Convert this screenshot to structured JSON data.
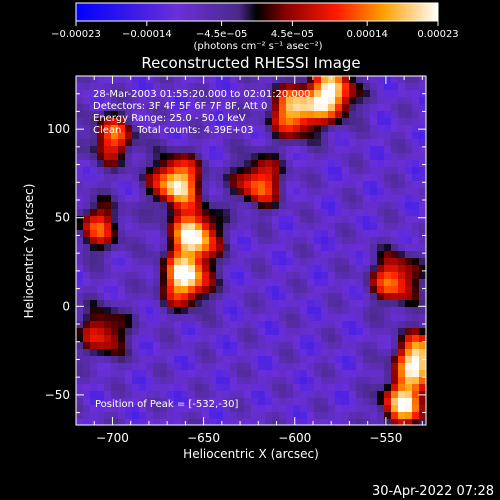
{
  "chart_data": {
    "type": "heatmap",
    "title": "Reconstructed RHESSI Image",
    "xlabel": "Heliocentric X (arcsec)",
    "ylabel": "Heliocentric Y (arcsec)",
    "xlim": [
      -720,
      -528
    ],
    "ylim": [
      -67,
      130
    ],
    "x_ticks": [
      -700,
      -650,
      -600,
      -550
    ],
    "x_tick_labels": [
      "−700",
      "−650",
      "−600",
      "−550"
    ],
    "y_ticks": [
      -50,
      0,
      50,
      100
    ],
    "y_tick_labels": [
      "−50",
      "0",
      "50",
      "100"
    ],
    "colorbar": {
      "range": [
        -0.00023,
        0.00023
      ],
      "ticks": [
        -0.00023,
        -0.00014,
        -4.5e-05,
        4.5e-05,
        0.00014,
        0.00023
      ],
      "tick_labels": [
        "−0.00023",
        "−0.00014",
        "−4.5e−05",
        "4.5e−05",
        "0.00014",
        "0.00023"
      ],
      "units_label": "(photons cm⁻² s⁻¹ asec⁻²)"
    },
    "annotations": [
      "28-Mar-2003 01:55:20.000 to 02:01:20.000",
      "Detectors: 3F 4F 5F 6F 7F 8F, Att 0",
      "Energy Range: 25.0 - 50.0 keV",
      "Clean     Total counts: 4.39E+03",
      "Position of Peak = [-532,-30]"
    ],
    "hot_spots": [
      {
        "x": -665,
        "y": 70,
        "value": 0.00023
      },
      {
        "x": -655,
        "y": 40,
        "value": 0.00023
      },
      {
        "x": -660,
        "y": 15,
        "value": 0.00023
      },
      {
        "x": -600,
        "y": 110,
        "value": 0.0002
      },
      {
        "x": -580,
        "y": 120,
        "value": 0.00023
      },
      {
        "x": -532,
        "y": -30,
        "value": 0.00023
      },
      {
        "x": -540,
        "y": -55,
        "value": 0.0002
      },
      {
        "x": -545,
        "y": 15,
        "value": 0.00015
      },
      {
        "x": -700,
        "y": 95,
        "value": 0.00012
      },
      {
        "x": -708,
        "y": 45,
        "value": 0.0001
      },
      {
        "x": -705,
        "y": -15,
        "value": 0.0001
      },
      {
        "x": -620,
        "y": 70,
        "value": 0.00014
      }
    ]
  },
  "footer": {
    "date": "30-Apr-2022 07:28"
  }
}
